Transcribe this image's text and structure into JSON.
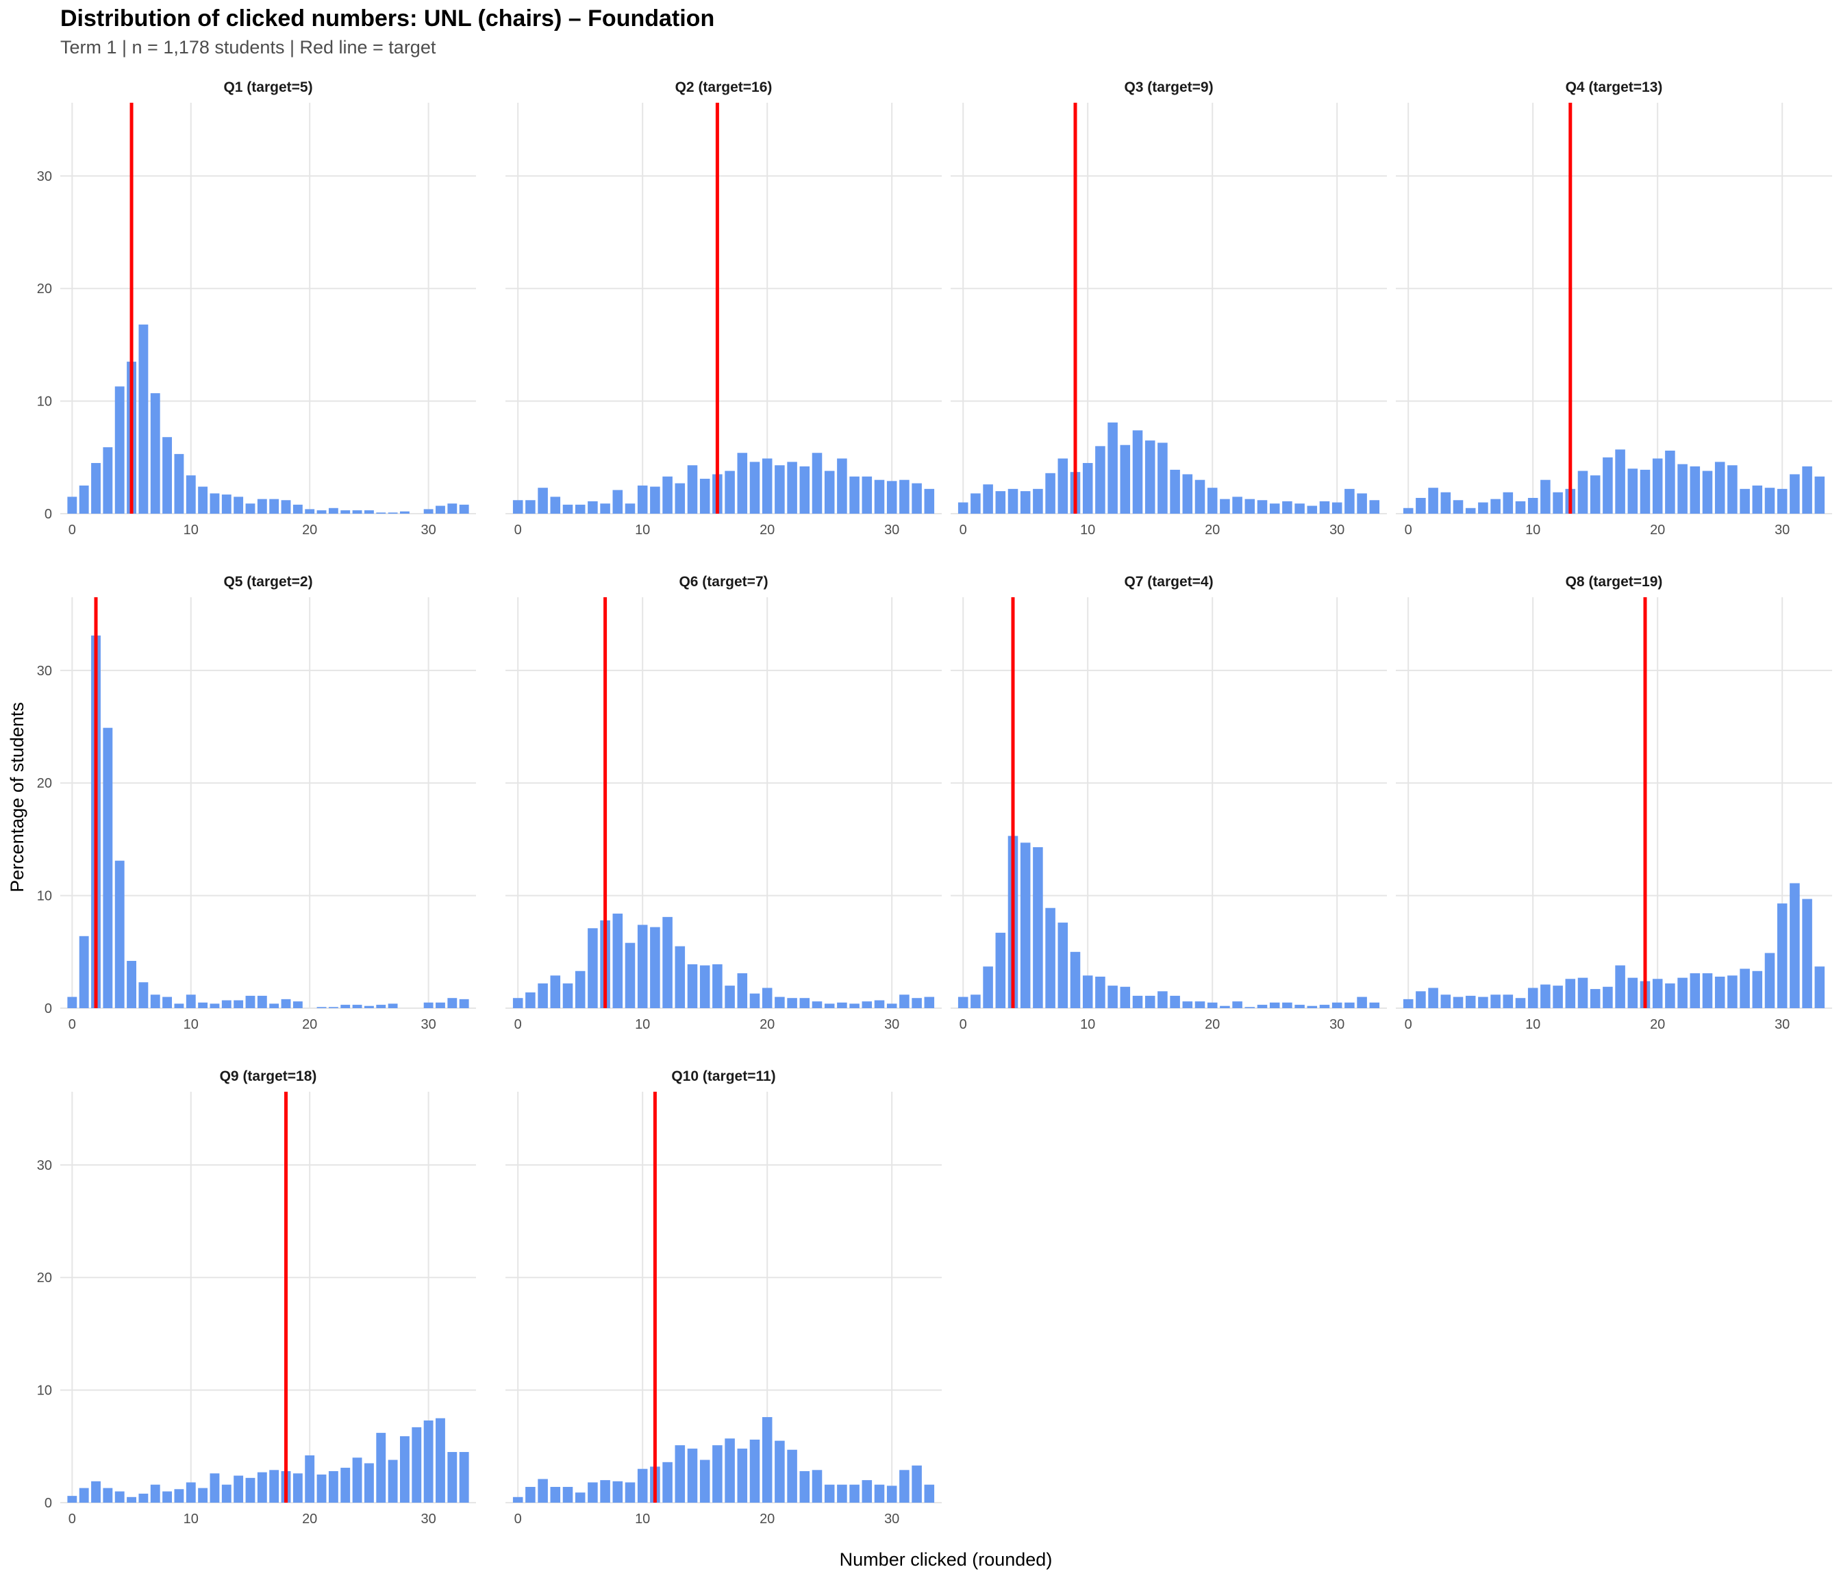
{
  "chart_data": {
    "type": "bar",
    "title": "Distribution of clicked numbers: UNL (chairs) – Foundation",
    "subtitle": "Term 1 | n = 1,178 students | Red line = target",
    "xlabel": "Number clicked (rounded)",
    "ylabel": "Percentage of students",
    "x_range": [
      -1,
      34
    ],
    "ylim": [
      0,
      36.5
    ],
    "x_ticks": [
      0,
      10,
      20,
      30
    ],
    "y_ticks": [
      0,
      10,
      20,
      30
    ],
    "grid": true,
    "bar_color": "#6699f0",
    "target_line_color": "#ff0000",
    "x": [
      0,
      1,
      2,
      3,
      4,
      5,
      6,
      7,
      8,
      9,
      10,
      11,
      12,
      13,
      14,
      15,
      16,
      17,
      18,
      19,
      20,
      21,
      22,
      23,
      24,
      25,
      26,
      27,
      28,
      29,
      30,
      31,
      32,
      33
    ],
    "panels": [
      {
        "label": "Q1 (target=5)",
        "target": 5,
        "values": [
          1.5,
          2.5,
          4.5,
          5.9,
          11.3,
          13.5,
          16.8,
          10.7,
          6.8,
          5.3,
          3.4,
          2.4,
          1.8,
          1.7,
          1.5,
          0.9,
          1.3,
          1.3,
          1.2,
          0.8,
          0.4,
          0.3,
          0.5,
          0.3,
          0.3,
          0.3,
          0.1,
          0.1,
          0.2,
          0.0,
          0.4,
          0.7,
          0.9,
          0.8
        ]
      },
      {
        "label": "Q2 (target=16)",
        "target": 16,
        "values": [
          1.2,
          1.2,
          2.3,
          1.5,
          0.8,
          0.8,
          1.1,
          0.9,
          2.1,
          0.9,
          2.5,
          2.4,
          3.3,
          2.7,
          4.3,
          3.1,
          3.5,
          3.8,
          5.4,
          4.6,
          4.9,
          4.3,
          4.6,
          4.2,
          5.4,
          3.8,
          4.9,
          3.3,
          3.3,
          3.0,
          2.9,
          3.0,
          2.7,
          2.2
        ]
      },
      {
        "label": "Q3 (target=9)",
        "target": 9,
        "values": [
          1.0,
          1.8,
          2.6,
          2.0,
          2.2,
          2.0,
          2.2,
          3.6,
          4.9,
          3.7,
          4.5,
          6.0,
          8.1,
          6.1,
          7.4,
          6.5,
          6.3,
          3.9,
          3.5,
          3.0,
          2.3,
          1.3,
          1.5,
          1.3,
          1.2,
          0.9,
          1.1,
          0.9,
          0.7,
          1.1,
          1.0,
          2.2,
          1.8,
          1.2
        ]
      },
      {
        "label": "Q4 (target=13)",
        "target": 13,
        "values": [
          0.5,
          1.4,
          2.3,
          1.9,
          1.2,
          0.5,
          1.0,
          1.3,
          1.9,
          1.1,
          1.4,
          3.0,
          1.9,
          2.2,
          3.8,
          3.4,
          5.0,
          5.7,
          4.0,
          3.9,
          4.9,
          5.6,
          4.4,
          4.2,
          3.8,
          4.6,
          4.3,
          2.2,
          2.5,
          2.3,
          2.2,
          3.5,
          4.2,
          3.3
        ]
      },
      {
        "label": "Q5 (target=2)",
        "target": 2,
        "values": [
          1.0,
          6.4,
          33.1,
          24.9,
          13.1,
          4.2,
          2.3,
          1.2,
          1.0,
          0.4,
          1.2,
          0.5,
          0.4,
          0.7,
          0.7,
          1.1,
          1.1,
          0.4,
          0.8,
          0.6,
          0.0,
          0.1,
          0.1,
          0.3,
          0.3,
          0.2,
          0.3,
          0.4,
          0.0,
          0.0,
          0.5,
          0.5,
          0.9,
          0.8
        ]
      },
      {
        "label": "Q6 (target=7)",
        "target": 7,
        "values": [
          0.9,
          1.4,
          2.2,
          2.9,
          2.2,
          3.3,
          7.1,
          7.8,
          8.4,
          5.8,
          7.4,
          7.2,
          8.1,
          5.5,
          3.9,
          3.8,
          3.9,
          2.0,
          3.1,
          1.3,
          1.8,
          1.0,
          0.9,
          0.9,
          0.6,
          0.4,
          0.5,
          0.4,
          0.6,
          0.7,
          0.4,
          1.2,
          0.9,
          1.0
        ]
      },
      {
        "label": "Q7 (target=4)",
        "target": 4,
        "values": [
          1.0,
          1.2,
          3.7,
          6.7,
          15.3,
          14.7,
          14.3,
          8.9,
          7.6,
          5.0,
          2.9,
          2.8,
          2.0,
          1.9,
          1.1,
          1.1,
          1.5,
          1.1,
          0.6,
          0.6,
          0.5,
          0.2,
          0.6,
          0.1,
          0.3,
          0.5,
          0.5,
          0.3,
          0.2,
          0.3,
          0.5,
          0.5,
          1.0,
          0.5
        ]
      },
      {
        "label": "Q8 (target=19)",
        "target": 19,
        "values": [
          0.8,
          1.5,
          1.8,
          1.2,
          1.0,
          1.1,
          1.0,
          1.2,
          1.2,
          0.9,
          1.8,
          2.1,
          2.0,
          2.6,
          2.7,
          1.7,
          1.9,
          3.8,
          2.7,
          2.4,
          2.6,
          2.2,
          2.7,
          3.1,
          3.1,
          2.8,
          2.9,
          3.5,
          3.3,
          4.9,
          9.3,
          11.1,
          9.7,
          3.7
        ]
      },
      {
        "label": "Q9 (target=18)",
        "target": 18,
        "values": [
          0.6,
          1.3,
          1.9,
          1.3,
          1.0,
          0.5,
          0.8,
          1.6,
          1.0,
          1.2,
          1.8,
          1.3,
          2.6,
          1.6,
          2.4,
          2.2,
          2.7,
          2.9,
          2.8,
          2.6,
          4.2,
          2.5,
          2.8,
          3.1,
          4.0,
          3.5,
          6.2,
          3.8,
          5.9,
          6.7,
          7.3,
          7.5,
          4.5,
          4.5
        ]
      },
      {
        "label": "Q10 (target=11)",
        "target": 11,
        "values": [
          0.5,
          1.4,
          2.1,
          1.4,
          1.4,
          0.9,
          1.8,
          2.0,
          1.9,
          1.8,
          3.0,
          3.2,
          3.6,
          5.1,
          4.8,
          3.8,
          5.1,
          5.7,
          4.8,
          5.6,
          7.6,
          5.5,
          4.7,
          2.8,
          2.9,
          1.6,
          1.6,
          1.6,
          2.0,
          1.6,
          1.5,
          2.9,
          3.3,
          1.6
        ]
      }
    ]
  }
}
